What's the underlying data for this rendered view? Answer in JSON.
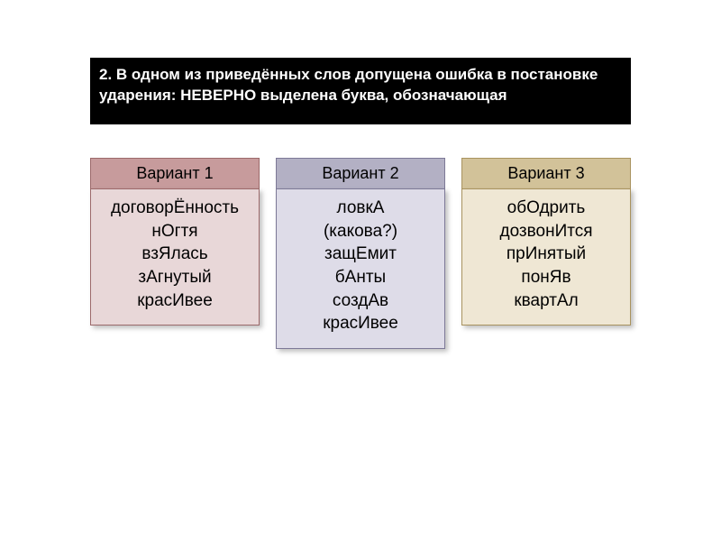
{
  "question": {
    "line1": "2. В одном из приведённых слов допущена ошибка в постановке",
    "line2": "ударения: НЕВЕРНО выделена буква, обозначающая"
  },
  "variants": [
    {
      "header": "Вариант 1",
      "words": [
        "договорЁнность",
        "нОгтя",
        "взЯлась",
        "зАгнутый",
        "красИвее"
      ]
    },
    {
      "header": "Вариант 2",
      "words": [
        "ловкА",
        "(какова?)",
        "защЕмит",
        "бАнты",
        "создАв",
        "красИвее"
      ]
    },
    {
      "header": "Вариант 3",
      "words": [
        "обОдрить",
        "дозвонИтся",
        "прИнятый",
        "понЯв",
        "квартАл"
      ]
    }
  ],
  "colors": {
    "v1_header": "#c79b9c",
    "v1_body": "#e8d7d8",
    "v1_border": "#9c6a6b",
    "v2_header": "#b3b0c4",
    "v2_body": "#dedce8",
    "v2_border": "#7d7997",
    "v3_header": "#d2c299",
    "v3_body": "#efe7d4",
    "v3_border": "#a9935f"
  }
}
